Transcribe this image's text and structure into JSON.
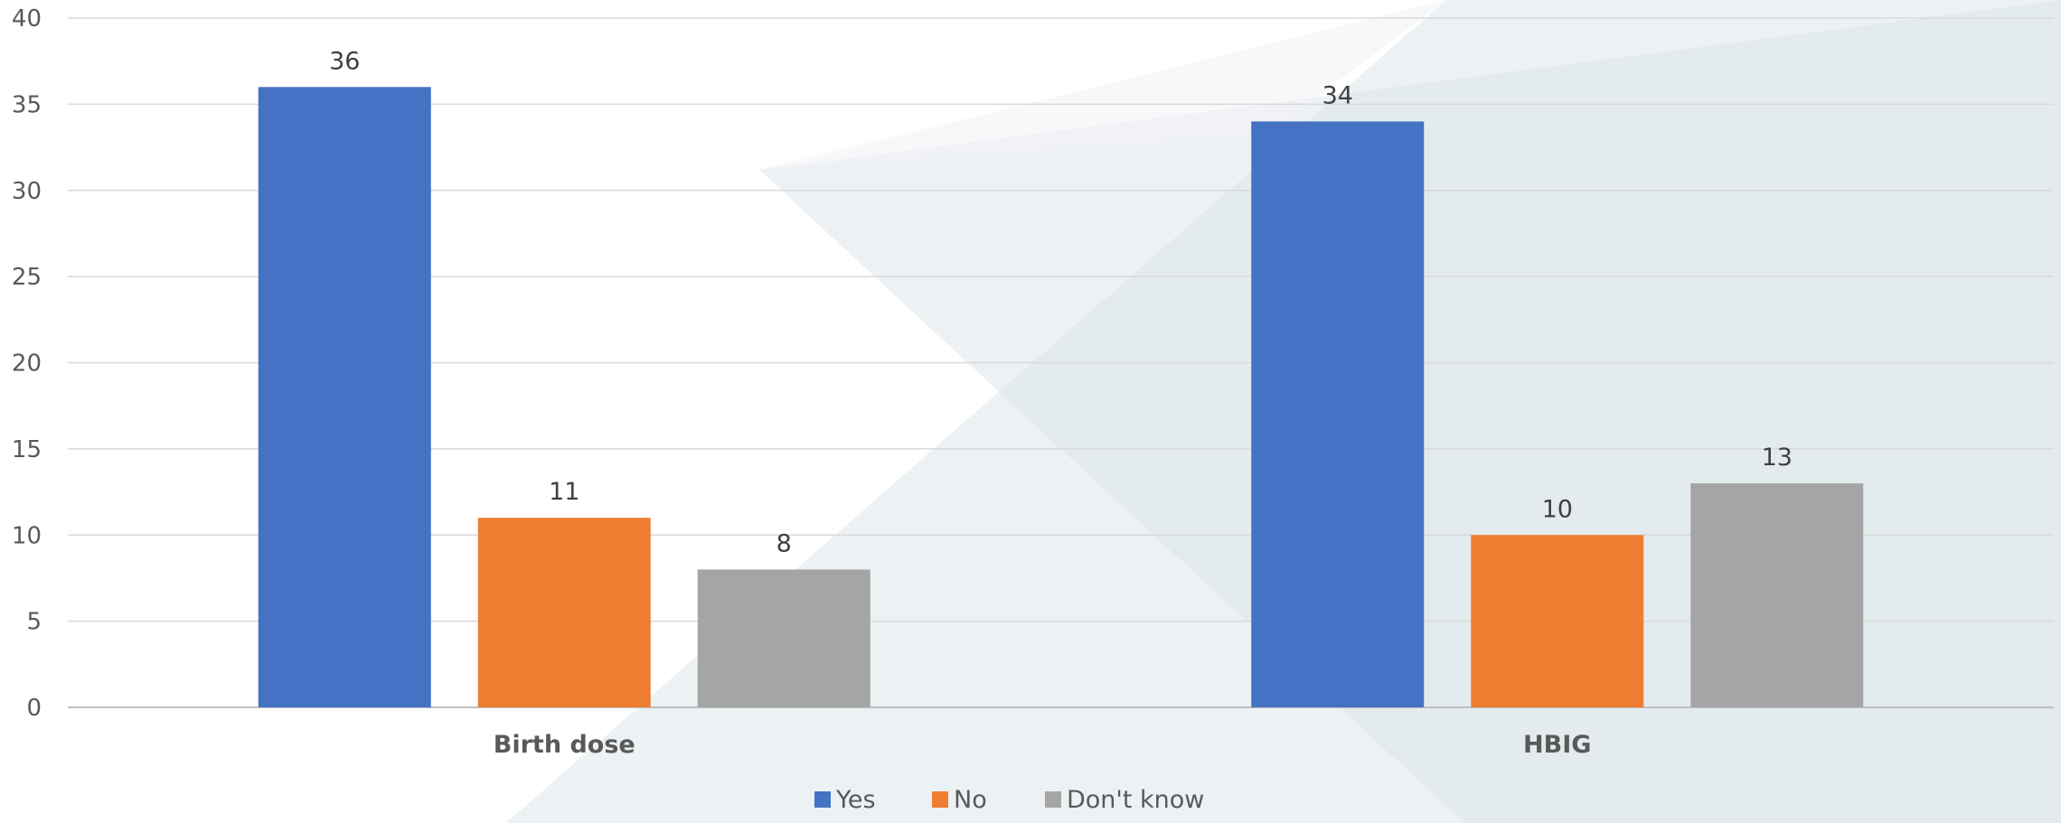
{
  "chart_data": {
    "type": "bar",
    "categories": [
      "Birth dose",
      "HBIG"
    ],
    "series": [
      {
        "name": "Yes",
        "values": [
          36,
          34
        ],
        "color": "#4472C4"
      },
      {
        "name": "No",
        "values": [
          11,
          10
        ],
        "color": "#ED7D31"
      },
      {
        "name": "Don't know",
        "values": [
          8,
          13
        ],
        "color": "#A5A5A5"
      }
    ],
    "ylim": [
      0,
      40
    ],
    "yticks": [
      0,
      5,
      10,
      15,
      20,
      25,
      30,
      35,
      40
    ],
    "grid": true,
    "legend_position": "bottom",
    "data_labels": true
  }
}
